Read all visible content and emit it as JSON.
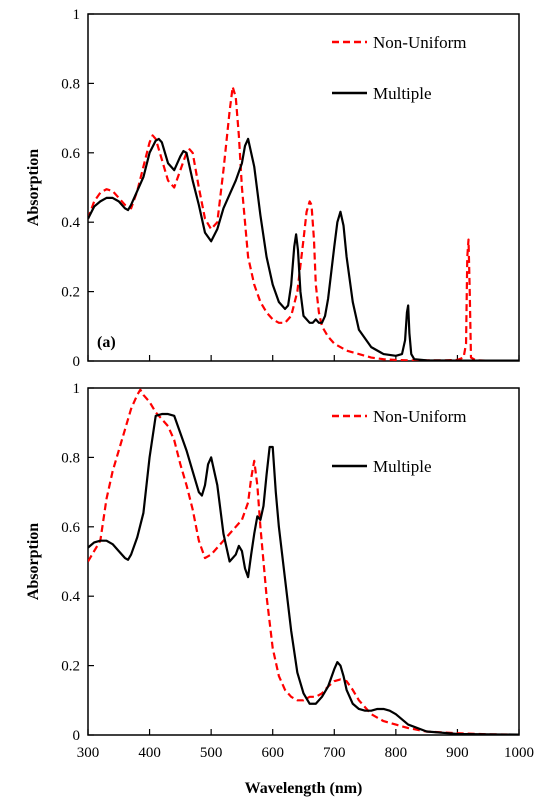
{
  "chart_data": [
    {
      "type": "line",
      "panel_label": "(a)",
      "title": "",
      "xlabel": "",
      "ylabel": "Absorption",
      "xlim": [
        300,
        1000
      ],
      "ylim": [
        0,
        1
      ],
      "yticks": [
        "0",
        "0.2",
        "0.4",
        "0.6",
        "0.8",
        "1"
      ],
      "grid": false,
      "legend_position": "top-right",
      "series": [
        {
          "name": "Non-Uniform",
          "color": "#ff0000",
          "dash": "dashed",
          "x": [
            300,
            310,
            320,
            330,
            340,
            350,
            360,
            370,
            380,
            390,
            400,
            405,
            410,
            420,
            430,
            440,
            450,
            460,
            465,
            470,
            480,
            490,
            500,
            510,
            520,
            530,
            535,
            540,
            545,
            550,
            560,
            570,
            580,
            590,
            600,
            610,
            620,
            630,
            640,
            650,
            655,
            660,
            663,
            667,
            670,
            675,
            680,
            690,
            700,
            720,
            740,
            760,
            780,
            800,
            820,
            840,
            860,
            880,
            900,
            910,
            914,
            916,
            918,
            920,
            922,
            930,
            950,
            1000
          ],
          "y": [
            0.41,
            0.46,
            0.485,
            0.495,
            0.49,
            0.47,
            0.45,
            0.44,
            0.49,
            0.56,
            0.63,
            0.65,
            0.64,
            0.58,
            0.52,
            0.5,
            0.55,
            0.6,
            0.61,
            0.6,
            0.5,
            0.41,
            0.38,
            0.4,
            0.55,
            0.72,
            0.79,
            0.76,
            0.65,
            0.5,
            0.3,
            0.22,
            0.17,
            0.14,
            0.12,
            0.11,
            0.11,
            0.13,
            0.2,
            0.35,
            0.43,
            0.46,
            0.45,
            0.35,
            0.22,
            0.14,
            0.1,
            0.07,
            0.05,
            0.03,
            0.02,
            0.01,
            0.005,
            0.003,
            0.002,
            0.002,
            0.002,
            0.002,
            0.003,
            0.01,
            0.05,
            0.3,
            0.35,
            0.2,
            0.01,
            0.002,
            0.001,
            0.001
          ]
        },
        {
          "name": "Multiple",
          "color": "#000000",
          "dash": "solid",
          "x": [
            300,
            310,
            320,
            330,
            340,
            350,
            360,
            365,
            370,
            380,
            390,
            400,
            410,
            415,
            420,
            430,
            440,
            450,
            455,
            460,
            470,
            480,
            490,
            500,
            510,
            520,
            530,
            540,
            550,
            555,
            560,
            565,
            570,
            580,
            590,
            600,
            610,
            620,
            625,
            630,
            635,
            638,
            641,
            645,
            650,
            660,
            665,
            670,
            675,
            680,
            685,
            690,
            700,
            705,
            710,
            715,
            720,
            730,
            740,
            760,
            780,
            800,
            810,
            815,
            818,
            820,
            822,
            825,
            830,
            850,
            900,
            1000
          ],
          "y": [
            0.41,
            0.445,
            0.46,
            0.47,
            0.47,
            0.46,
            0.44,
            0.435,
            0.45,
            0.49,
            0.53,
            0.6,
            0.635,
            0.64,
            0.63,
            0.57,
            0.55,
            0.59,
            0.605,
            0.6,
            0.52,
            0.45,
            0.37,
            0.345,
            0.38,
            0.44,
            0.48,
            0.52,
            0.57,
            0.62,
            0.64,
            0.6,
            0.56,
            0.42,
            0.3,
            0.22,
            0.17,
            0.15,
            0.16,
            0.22,
            0.33,
            0.365,
            0.32,
            0.2,
            0.13,
            0.11,
            0.11,
            0.12,
            0.11,
            0.11,
            0.13,
            0.18,
            0.33,
            0.4,
            0.43,
            0.39,
            0.3,
            0.17,
            0.09,
            0.04,
            0.02,
            0.015,
            0.02,
            0.06,
            0.14,
            0.16,
            0.08,
            0.02,
            0.005,
            0.002,
            0.001,
            0.001
          ]
        }
      ]
    },
    {
      "type": "line",
      "panel_label": "",
      "title": "",
      "xlabel": "Wavelength  (nm)",
      "ylabel": "Absorption",
      "xlim": [
        300,
        1000
      ],
      "ylim": [
        0,
        1
      ],
      "xticks": [
        "300",
        "400",
        "500",
        "600",
        "700",
        "800",
        "900",
        "1000"
      ],
      "yticks": [
        "0",
        "0.2",
        "0.4",
        "0.6",
        "0.8",
        "1"
      ],
      "grid": false,
      "legend_position": "top-right",
      "series": [
        {
          "name": "Non-Uniform",
          "color": "#ff0000",
          "dash": "dashed",
          "x": [
            300,
            310,
            320,
            330,
            340,
            350,
            360,
            370,
            380,
            385,
            390,
            400,
            410,
            420,
            430,
            440,
            450,
            460,
            470,
            480,
            490,
            500,
            510,
            520,
            530,
            540,
            550,
            560,
            565,
            570,
            575,
            580,
            590,
            600,
            610,
            620,
            630,
            640,
            650,
            660,
            670,
            680,
            690,
            700,
            710,
            720,
            730,
            740,
            750,
            760,
            780,
            800,
            820,
            850,
            900,
            950,
            1000
          ],
          "y": [
            0.5,
            0.53,
            0.56,
            0.68,
            0.76,
            0.82,
            0.88,
            0.94,
            0.98,
            0.995,
            0.98,
            0.96,
            0.93,
            0.91,
            0.89,
            0.85,
            0.78,
            0.72,
            0.65,
            0.56,
            0.51,
            0.52,
            0.54,
            0.56,
            0.58,
            0.6,
            0.62,
            0.67,
            0.74,
            0.79,
            0.72,
            0.6,
            0.4,
            0.25,
            0.17,
            0.13,
            0.11,
            0.1,
            0.1,
            0.11,
            0.11,
            0.12,
            0.14,
            0.155,
            0.16,
            0.155,
            0.13,
            0.1,
            0.08,
            0.06,
            0.04,
            0.03,
            0.02,
            0.01,
            0.005,
            0.002,
            0.001
          ]
        },
        {
          "name": "Multiple",
          "color": "#000000",
          "dash": "solid",
          "x": [
            300,
            310,
            320,
            330,
            340,
            350,
            360,
            365,
            370,
            380,
            390,
            400,
            410,
            420,
            430,
            440,
            450,
            460,
            470,
            480,
            485,
            490,
            495,
            500,
            510,
            520,
            530,
            540,
            545,
            550,
            555,
            560,
            565,
            570,
            575,
            580,
            585,
            590,
            595,
            600,
            605,
            610,
            620,
            630,
            640,
            650,
            660,
            670,
            680,
            690,
            700,
            705,
            710,
            715,
            720,
            730,
            740,
            750,
            760,
            770,
            780,
            790,
            800,
            820,
            850,
            900,
            1000
          ],
          "y": [
            0.54,
            0.555,
            0.56,
            0.56,
            0.55,
            0.53,
            0.51,
            0.505,
            0.52,
            0.57,
            0.64,
            0.8,
            0.92,
            0.925,
            0.925,
            0.92,
            0.87,
            0.82,
            0.76,
            0.7,
            0.69,
            0.72,
            0.78,
            0.8,
            0.72,
            0.58,
            0.5,
            0.52,
            0.545,
            0.53,
            0.48,
            0.455,
            0.52,
            0.58,
            0.63,
            0.62,
            0.66,
            0.75,
            0.83,
            0.83,
            0.7,
            0.6,
            0.45,
            0.3,
            0.18,
            0.12,
            0.09,
            0.09,
            0.11,
            0.14,
            0.19,
            0.21,
            0.2,
            0.17,
            0.13,
            0.09,
            0.075,
            0.07,
            0.07,
            0.075,
            0.075,
            0.07,
            0.06,
            0.03,
            0.01,
            0.003,
            0.001
          ]
        }
      ]
    }
  ]
}
